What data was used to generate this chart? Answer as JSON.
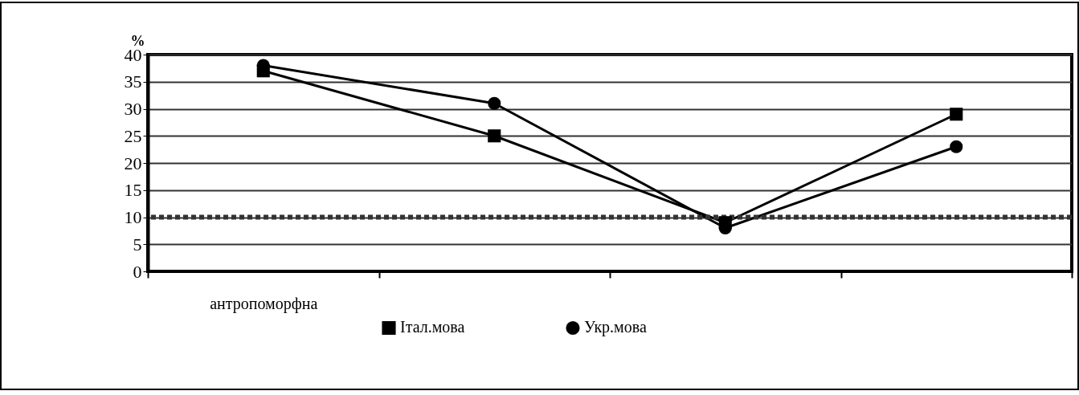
{
  "chart_data": {
    "type": "line",
    "ylabel": "%",
    "categories": [
      "антропоморфна",
      null,
      null,
      null
    ],
    "series": [
      {
        "name": "Італ.мова",
        "color": "#000000",
        "marker": "square",
        "values": [
          37,
          25,
          9,
          29
        ]
      },
      {
        "name": "Укр.мова",
        "color": "#000000",
        "marker": "circle",
        "values": [
          38,
          31,
          8,
          23
        ]
      }
    ],
    "ylim": [
      0,
      40
    ],
    "yticks": [
      0,
      5,
      10,
      15,
      20,
      25,
      30,
      35,
      40
    ],
    "ref_lines": [
      {
        "axis": "y",
        "value": 10,
        "color": "#333333",
        "line_style": "dotted"
      }
    ],
    "grid": "y",
    "legend": "bottom",
    "line_style": "solid"
  }
}
